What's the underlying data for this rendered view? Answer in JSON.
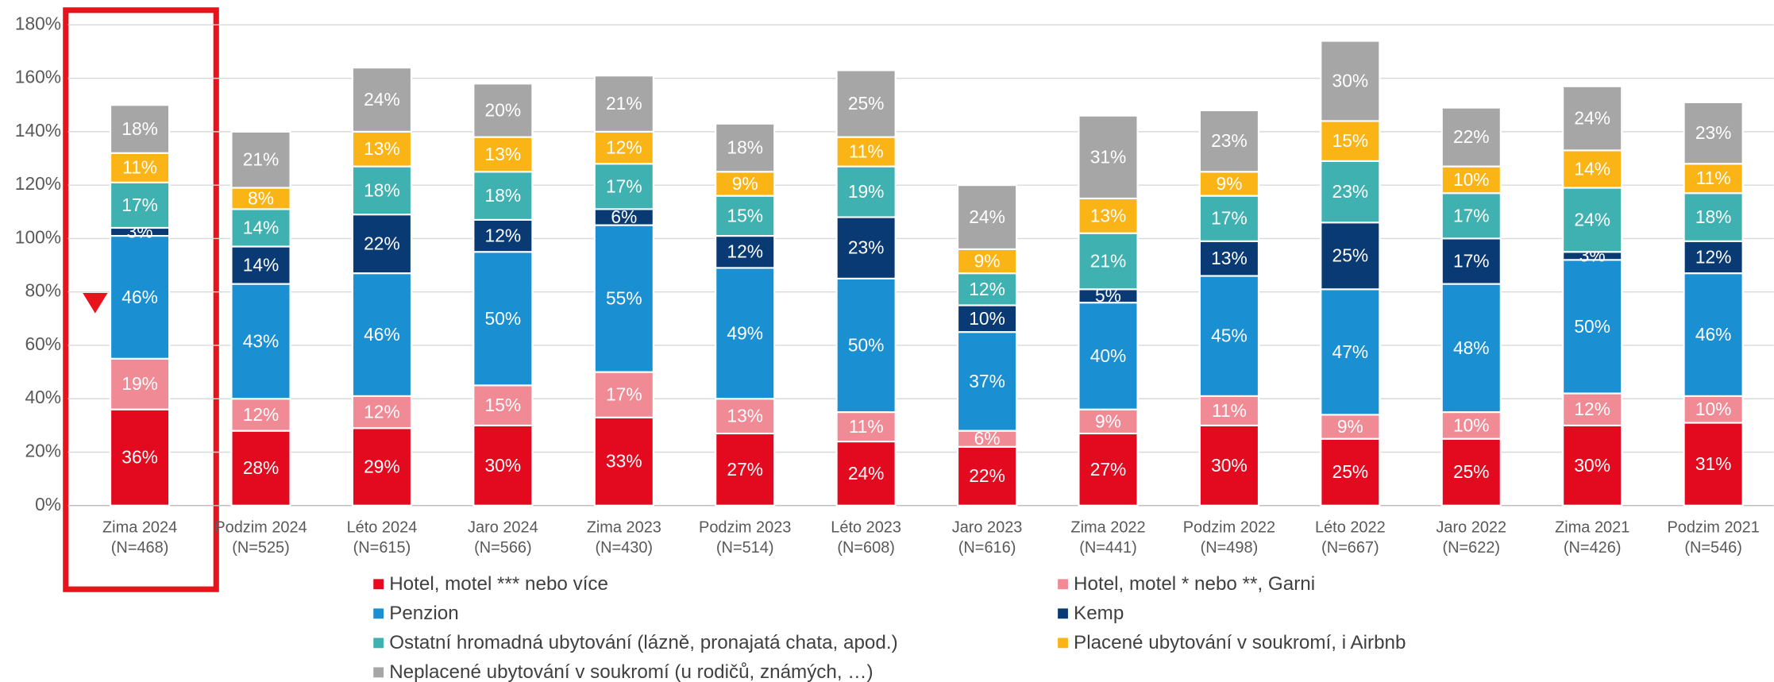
{
  "chart_data": {
    "type": "stacked_bar",
    "categories": [
      "Zima 2024",
      "Podzim 2024",
      "Léto 2024",
      "Jaro 2024",
      "Zima 2023",
      "Podzim 2023",
      "Léto 2023",
      "Jaro 2023",
      "Zima 2022",
      "Podzim 2022",
      "Léto 2022",
      "Jaro 2022",
      "Zima 2021",
      "Podzim 2021"
    ],
    "category_sizes": [
      "(N=468)",
      "(N=525)",
      "(N=615)",
      "(N=566)",
      "(N=430)",
      "(N=514)",
      "(N=608)",
      "(N=616)",
      "(N=441)",
      "(N=498)",
      "(N=667)",
      "(N=622)",
      "(N=426)",
      "(N=546)"
    ],
    "ylim": [
      0,
      180
    ],
    "yticks": [
      {
        "value": 0,
        "label": "0%"
      },
      {
        "value": 20,
        "label": "20%"
      },
      {
        "value": 40,
        "label": "40%"
      },
      {
        "value": 60,
        "label": "60%"
      },
      {
        "value": 80,
        "label": "80%"
      },
      {
        "value": 100,
        "label": "100%"
      },
      {
        "value": 120,
        "label": "120%"
      },
      {
        "value": 140,
        "label": "140%"
      },
      {
        "value": 160,
        "label": "160%"
      },
      {
        "value": 180,
        "label": "180%"
      }
    ],
    "grid": true,
    "series": [
      {
        "name": "Hotel, motel *** nebo více",
        "color": "#e30a1f",
        "values": [
          36,
          28,
          29,
          30,
          33,
          27,
          24,
          22,
          27,
          30,
          25,
          25,
          30,
          31
        ],
        "value_labels": [
          "36%",
          "28%",
          "29%",
          "30%",
          "33%",
          "27%",
          "24%",
          "22%",
          "27%",
          "30%",
          "25%",
          "25%",
          "30%",
          "31%"
        ]
      },
      {
        "name": "Hotel, motel * nebo **, Garni",
        "color": "#f08a95",
        "values": [
          19,
          12,
          12,
          15,
          17,
          13,
          11,
          6,
          9,
          11,
          9,
          10,
          12,
          10
        ],
        "value_labels": [
          "19%",
          "12%",
          "12%",
          "15%",
          "17%",
          "13%",
          "11%",
          "6%",
          "9%",
          "11%",
          "9%",
          "10%",
          "12%",
          "10%"
        ]
      },
      {
        "name": "Penzion",
        "color": "#1a8fd1",
        "values": [
          46,
          43,
          46,
          50,
          55,
          49,
          50,
          37,
          40,
          45,
          47,
          48,
          50,
          46
        ],
        "value_labels": [
          "46%",
          "43%",
          "46%",
          "50%",
          "55%",
          "49%",
          "50%",
          "37%",
          "40%",
          "45%",
          "47%",
          "48%",
          "50%",
          "46%"
        ]
      },
      {
        "name": "Kemp",
        "color": "#0a3a73",
        "values": [
          3,
          14,
          22,
          12,
          6,
          12,
          23,
          10,
          5,
          13,
          25,
          17,
          3,
          12
        ],
        "value_labels": [
          "3%",
          "14%",
          "22%",
          "12%",
          "6%",
          "12%",
          "23%",
          "10%",
          "5%",
          "13%",
          "25%",
          "17%",
          "3%",
          "12%"
        ]
      },
      {
        "name": "Ostatní hromadná ubytování (lázně, pronajatá chata, apod.)",
        "color": "#3fb1b0",
        "values": [
          17,
          14,
          18,
          18,
          17,
          15,
          19,
          12,
          21,
          17,
          23,
          17,
          24,
          18
        ],
        "value_labels": [
          "17%",
          "14%",
          "18%",
          "18%",
          "17%",
          "15%",
          "19%",
          "12%",
          "21%",
          "17%",
          "23%",
          "17%",
          "24%",
          "18%"
        ]
      },
      {
        "name": "Placené ubytování v soukromí, i Airbnb",
        "color": "#fbb416",
        "values": [
          11,
          8,
          13,
          13,
          12,
          9,
          11,
          9,
          13,
          9,
          15,
          10,
          14,
          11
        ],
        "value_labels": [
          "11%",
          "8%",
          "13%",
          "13%",
          "12%",
          "9%",
          "11%",
          "9%",
          "13%",
          "9%",
          "15%",
          "10%",
          "14%",
          "11%"
        ]
      },
      {
        "name": "Neplacené ubytování v soukromí (u rodičů, známých, …)",
        "color": "#a6a6a6",
        "values": [
          18,
          21,
          24,
          20,
          21,
          18,
          25,
          24,
          31,
          23,
          30,
          22,
          24,
          23
        ],
        "value_labels": [
          "18%",
          "21%",
          "24%",
          "20%",
          "21%",
          "18%",
          "25%",
          "24%",
          "31%",
          "23%",
          "30%",
          "22%",
          "24%",
          "23%"
        ]
      }
    ]
  }
}
